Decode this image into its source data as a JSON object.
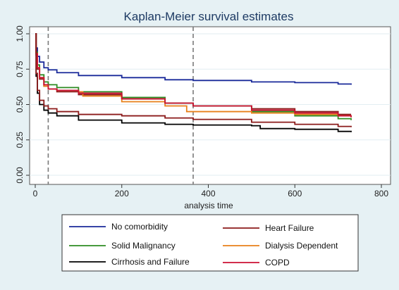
{
  "chart_data": {
    "type": "line",
    "title": "Kaplan-Meier survival estimates",
    "xlabel": "analysis time",
    "ylabel": "",
    "xlim": [
      0,
      800
    ],
    "ylim": [
      0,
      1
    ],
    "x_ticks": [
      0,
      200,
      400,
      600,
      800
    ],
    "x_tick_labels": [
      "0",
      "200",
      "400",
      "600",
      "800"
    ],
    "y_ticks": [
      0,
      0.25,
      0.5,
      0.75,
      1
    ],
    "y_tick_labels": [
      "0.00",
      "0.25",
      "0.50",
      "0.75",
      "1.00"
    ],
    "grid": true,
    "reference_lines_x": [
      30,
      365
    ],
    "legend_position": "bottom",
    "series": [
      {
        "name": "No comorbidity",
        "color": "#1a2a9a",
        "x": [
          0,
          2,
          5,
          10,
          20,
          30,
          50,
          100,
          200,
          300,
          365,
          500,
          600,
          700,
          730
        ],
        "y": [
          1.0,
          0.9,
          0.84,
          0.8,
          0.76,
          0.745,
          0.725,
          0.705,
          0.69,
          0.675,
          0.67,
          0.66,
          0.655,
          0.645,
          0.64
        ]
      },
      {
        "name": "Heart Failure",
        "color": "#8b1a1a",
        "x": [
          0,
          2,
          5,
          10,
          20,
          30,
          50,
          100,
          200,
          300,
          365,
          500,
          600,
          700,
          730
        ],
        "y": [
          1.0,
          0.85,
          0.75,
          0.68,
          0.63,
          0.61,
          0.59,
          0.57,
          0.54,
          0.51,
          0.49,
          0.47,
          0.45,
          0.43,
          0.43
        ]
      },
      {
        "name": "Solid Malignancy",
        "color": "#2e8b22",
        "x": [
          0,
          2,
          5,
          10,
          20,
          30,
          50,
          100,
          200,
          300,
          365,
          500,
          600,
          700,
          730
        ],
        "y": [
          1.0,
          0.87,
          0.78,
          0.71,
          0.66,
          0.64,
          0.62,
          0.59,
          0.55,
          0.51,
          0.49,
          0.45,
          0.42,
          0.4,
          0.39
        ]
      },
      {
        "name": "Dialysis Dependent",
        "color": "#e8801a",
        "x": [
          0,
          2,
          5,
          10,
          20,
          30,
          50,
          100,
          110,
          200,
          300,
          350,
          500,
          600,
          700,
          730
        ],
        "y": [
          1.0,
          0.86,
          0.76,
          0.69,
          0.63,
          0.61,
          0.6,
          0.59,
          0.56,
          0.52,
          0.49,
          0.45,
          0.44,
          0.43,
          0.42,
          0.41
        ]
      },
      {
        "name": "Cirrhosis and Failure",
        "color": "#000000",
        "x": [
          0,
          2,
          5,
          10,
          20,
          30,
          50,
          100,
          200,
          300,
          365,
          500,
          520,
          600,
          700,
          730
        ],
        "y": [
          1.0,
          0.7,
          0.58,
          0.5,
          0.46,
          0.44,
          0.42,
          0.39,
          0.37,
          0.36,
          0.355,
          0.35,
          0.33,
          0.325,
          0.31,
          0.305
        ]
      },
      {
        "name": "COPD",
        "color": "#cc1133",
        "x": [
          0,
          2,
          5,
          10,
          20,
          30,
          50,
          100,
          200,
          300,
          365,
          500,
          600,
          700,
          730
        ],
        "y": [
          1.0,
          0.86,
          0.76,
          0.69,
          0.64,
          0.61,
          0.6,
          0.58,
          0.54,
          0.51,
          0.49,
          0.46,
          0.44,
          0.42,
          0.41
        ]
      },
      {
        "name": "",
        "color": "#8b1a1a",
        "x": [
          0,
          2,
          5,
          10,
          20,
          30,
          50,
          100,
          200,
          300,
          365,
          500,
          600,
          700,
          730
        ],
        "y": [
          1.0,
          0.72,
          0.6,
          0.53,
          0.49,
          0.47,
          0.45,
          0.43,
          0.42,
          0.405,
          0.395,
          0.375,
          0.36,
          0.345,
          0.34
        ]
      }
    ]
  }
}
